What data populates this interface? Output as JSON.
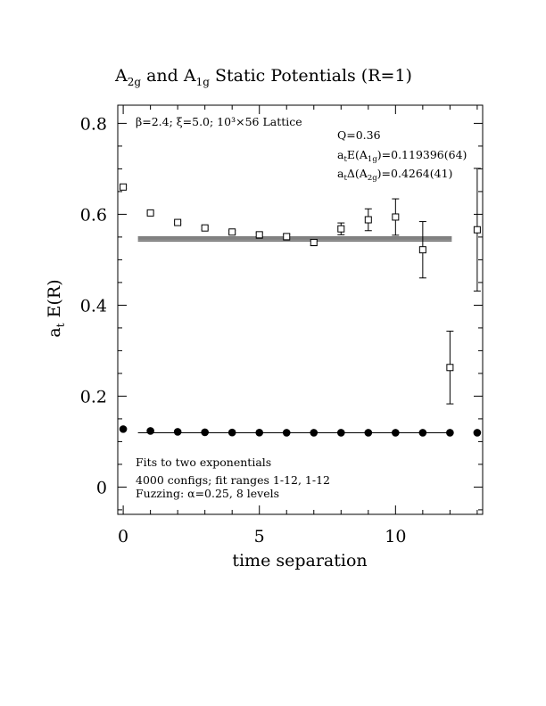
{
  "chart_data": {
    "type": "scatter",
    "title": {
      "part1": "A",
      "part1_sub": "2g",
      "part2": " and A",
      "part2_sub": "1g",
      "part3": " Static Potentials (R=1)"
    },
    "xlabel": "time separation",
    "ylabel": {
      "main": "a",
      "sub": "t",
      "rest": " E(R)"
    },
    "xlim": [
      -0.2,
      13.2
    ],
    "ylim": [
      -0.06,
      0.84
    ],
    "x_ticks": [
      0,
      5,
      10
    ],
    "x_tick_labels": [
      "0",
      "5",
      "10"
    ],
    "y_ticks": [
      0,
      0.2,
      0.4,
      0.6,
      0.8
    ],
    "y_tick_labels": [
      "0",
      "0.2",
      "0.4",
      "0.6",
      "0.8"
    ],
    "annotations": {
      "top_left": "β=2.4; ξ=5.0; 10³×56 Lattice",
      "q": "Q=0.36",
      "e1_pre": "a",
      "e1_sub": "t",
      "e1_mid": "E(A",
      "e1_sub2": "1g",
      "e1_post": ")=0.119396(64)",
      "d2_pre": "a",
      "d2_sub": "t",
      "d2_mid": "Δ(A",
      "d2_sub2": "2g",
      "d2_post": ")=0.4264(41)",
      "fits_line1": "Fits to two exponentials",
      "fits_line2": "4000 configs; fit ranges 1-12, 1-12",
      "fits_line3": "Fuzzing: α=0.25, 8 levels"
    },
    "series": [
      {
        "marker": "open-square",
        "x": [
          0,
          1,
          2,
          3,
          4,
          5,
          6,
          7,
          8,
          9,
          10,
          11,
          12,
          13
        ],
        "y": [
          0.66,
          0.603,
          0.582,
          0.57,
          0.561,
          0.555,
          0.551,
          0.538,
          0.568,
          0.588,
          0.594,
          0.522,
          0.263,
          0.566
        ],
        "err": [
          0.003,
          0.002,
          0.003,
          0.003,
          0.003,
          0.004,
          0.005,
          0.007,
          0.013,
          0.024,
          0.04,
          0.062,
          0.08,
          0.135
        ],
        "fit": {
          "value": 0.5458,
          "band": 0.0041,
          "x_range": [
            1,
            12
          ]
        }
      },
      {
        "marker": "filled-circle",
        "x": [
          0,
          1,
          2,
          3,
          4,
          5,
          6,
          7,
          8,
          9,
          10,
          11,
          12,
          13
        ],
        "y": [
          0.1275,
          0.1235,
          0.1215,
          0.1205,
          0.12,
          0.1198,
          0.1196,
          0.1196,
          0.1195,
          0.1195,
          0.1195,
          0.1195,
          0.1195,
          0.1195
        ],
        "fit": {
          "value": 0.1194,
          "x_range": [
            1,
            12
          ]
        }
      }
    ]
  }
}
